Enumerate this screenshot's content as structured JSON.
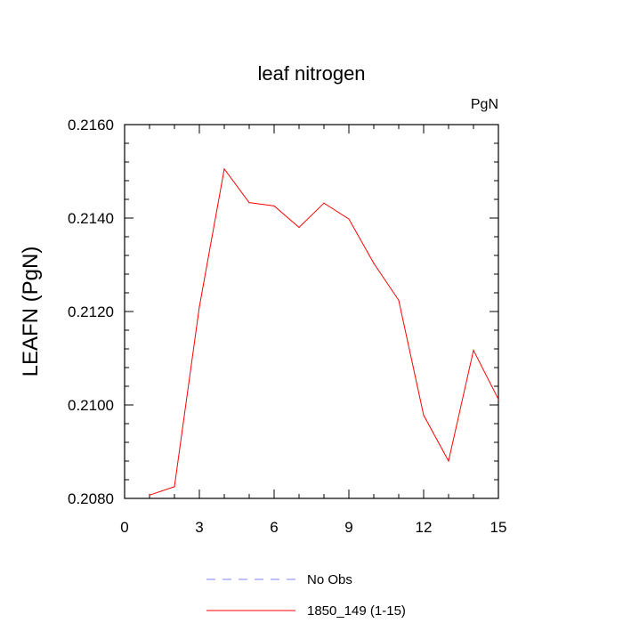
{
  "chart_data": {
    "type": "line",
    "title": "leaf nitrogen",
    "units": "PgN",
    "xlabel": "",
    "ylabel": "LEAFN  (PgN)",
    "xlim": [
      0,
      15
    ],
    "ylim": [
      0.208,
      0.216
    ],
    "x_ticks": [
      "0",
      "3",
      "6",
      "9",
      "12",
      "15"
    ],
    "y_ticks": [
      "0.2080",
      "0.2100",
      "0.2120",
      "0.2140",
      "0.2160"
    ],
    "grid": false,
    "legend_placement": "bottom",
    "series": [
      {
        "name": "No Obs",
        "color": "#8080ff",
        "style": "dashed",
        "x": [],
        "values": []
      },
      {
        "name": "1850_149 (1-15)",
        "color": "#ff0000",
        "style": "solid",
        "x": [
          1,
          2,
          3,
          4,
          5,
          6,
          7,
          8,
          9,
          10,
          11,
          12,
          13,
          14,
          15
        ],
        "values": [
          0.20807,
          0.20825,
          0.2121,
          0.21505,
          0.21433,
          0.21426,
          0.2138,
          0.21432,
          0.21398,
          0.21303,
          0.21224,
          0.20978,
          0.2088,
          0.21117,
          0.21012
        ]
      }
    ]
  }
}
